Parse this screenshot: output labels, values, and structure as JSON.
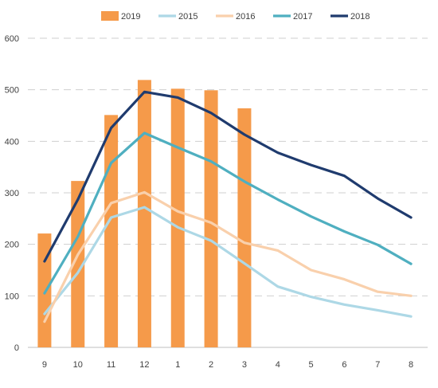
{
  "chart_data": {
    "type": "bar+line",
    "categories": [
      "9",
      "10",
      "11",
      "12",
      "1",
      "2",
      "3",
      "4",
      "5",
      "6",
      "7",
      "8"
    ],
    "ylim": [
      0,
      600
    ],
    "yticks": [
      0,
      100,
      200,
      300,
      400,
      500,
      600
    ],
    "grid": true,
    "legend_position": "top",
    "title": "",
    "xlabel": "",
    "ylabel": "",
    "series": [
      {
        "name": "2019",
        "kind": "bar",
        "color": "#f59a4a",
        "values": [
          221,
          323,
          451,
          519,
          502,
          499,
          464,
          null,
          null,
          null,
          null,
          null
        ]
      },
      {
        "name": "2015",
        "kind": "line",
        "color": "#add8e6",
        "values": [
          65,
          145,
          252,
          272,
          233,
          207,
          163,
          118,
          98,
          83,
          72,
          60
        ]
      },
      {
        "name": "2016",
        "kind": "line",
        "color": "#f9d0ac",
        "values": [
          50,
          180,
          280,
          301,
          264,
          242,
          203,
          188,
          150,
          132,
          108,
          100
        ]
      },
      {
        "name": "2017",
        "kind": "line",
        "color": "#4fafc0",
        "values": [
          105,
          215,
          358,
          416,
          388,
          361,
          322,
          287,
          254,
          225,
          199,
          162
        ]
      },
      {
        "name": "2018",
        "kind": "line",
        "color": "#1f3b6e",
        "values": [
          167,
          287,
          426,
          496,
          485,
          455,
          413,
          378,
          354,
          333,
          289,
          252
        ]
      }
    ]
  }
}
